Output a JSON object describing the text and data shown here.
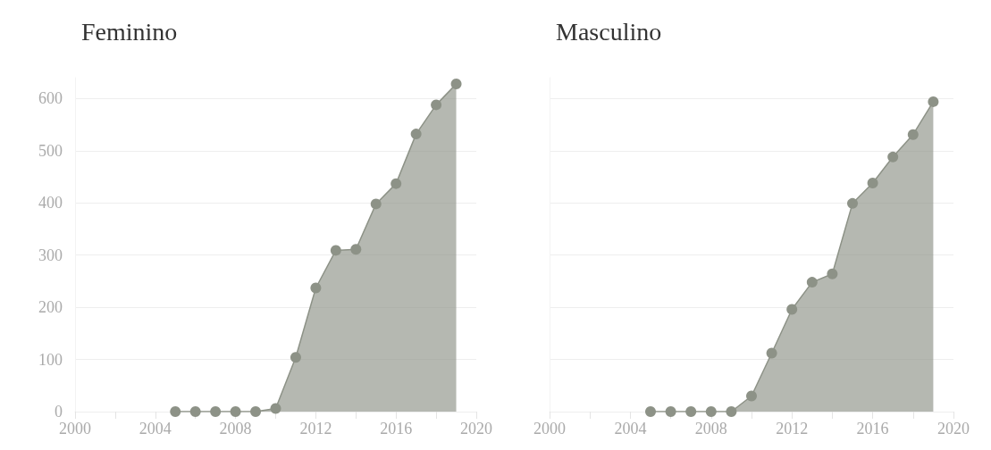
{
  "chart_data": [
    {
      "type": "area",
      "title": "Feminino",
      "x": [
        2005,
        2006,
        2007,
        2008,
        2009,
        2010,
        2011,
        2012,
        2013,
        2014,
        2015,
        2016,
        2017,
        2018,
        2019
      ],
      "values": [
        0,
        0,
        0,
        0,
        0,
        6,
        104,
        237,
        309,
        311,
        398,
        437,
        532,
        588,
        628
      ],
      "color": "#8d9287",
      "marker": "circle",
      "grid": "y",
      "xlim": [
        2000,
        2020
      ],
      "xticks": [
        2000,
        {
          "value": 2002,
          "label": null
        },
        2004,
        {
          "value": 2006,
          "label": null
        },
        2008,
        {
          "value": 2010,
          "label": null
        },
        2012,
        {
          "value": 2014,
          "label": null
        },
        2016,
        {
          "value": 2018,
          "label": null
        },
        2020
      ],
      "ylim": [
        0,
        640
      ],
      "yticks": [
        0,
        100,
        200,
        300,
        400,
        500,
        600
      ]
    },
    {
      "type": "area",
      "title": "Masculino",
      "x": [
        2005,
        2006,
        2007,
        2008,
        2009,
        2010,
        2011,
        2012,
        2013,
        2014,
        2015,
        2016,
        2017,
        2018,
        2019
      ],
      "values": [
        0,
        0,
        0,
        0,
        0,
        30,
        112,
        196,
        248,
        264,
        399,
        438,
        488,
        531,
        594
      ],
      "color": "#8d9287",
      "marker": "circle",
      "grid": "y",
      "tick_labels": "x",
      "xlim": [
        2000,
        2020
      ],
      "xticks": [
        2000,
        {
          "value": 2002,
          "label": null
        },
        2004,
        {
          "value": 2006,
          "label": null
        },
        2008,
        {
          "value": 2010,
          "label": null
        },
        2012,
        {
          "value": 2014,
          "label": null
        },
        2016,
        {
          "value": 2018,
          "label": null
        },
        2020
      ],
      "ylim": [
        0,
        640
      ],
      "yticks": [
        0,
        100,
        200,
        300,
        400,
        500,
        600
      ]
    }
  ]
}
